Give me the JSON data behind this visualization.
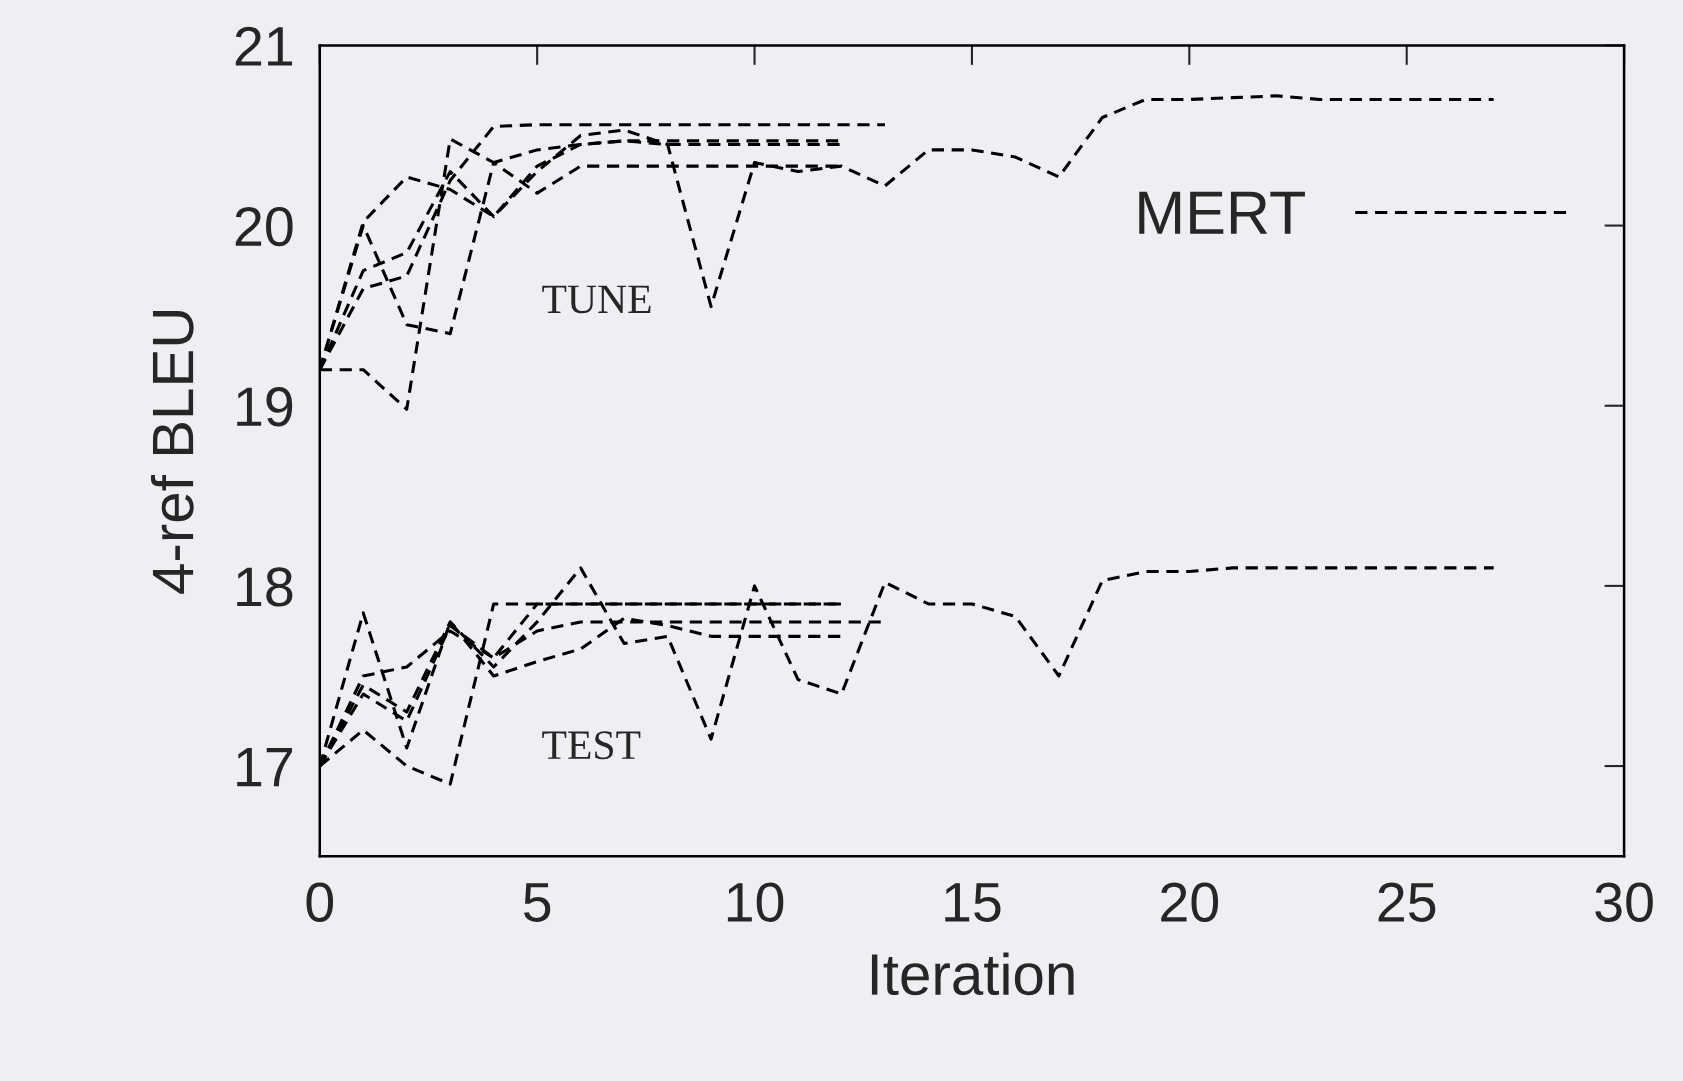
{
  "chart_data": {
    "type": "line",
    "xlabel": "Iteration",
    "ylabel": "4-ref BLEU",
    "xlim": [
      0,
      30
    ],
    "ylim": [
      16.5,
      21
    ],
    "xticks": [
      0,
      5,
      10,
      15,
      20,
      25,
      30
    ],
    "yticks": [
      17,
      18,
      19,
      20,
      21
    ],
    "legend": "top right",
    "line_style": "dashed",
    "marker": "none",
    "grid": false,
    "annotations": [
      "TUNE",
      "TEST"
    ],
    "series": [
      {
        "name": "MERT",
        "color": "#000000",
        "x": [
          0,
          1,
          2,
          3,
          4,
          5,
          6,
          7,
          8,
          9,
          10,
          11,
          12,
          13,
          14,
          15,
          16,
          17,
          18,
          19,
          20,
          21,
          22,
          23,
          24,
          25,
          26,
          27
        ],
        "values": [
          19.2,
          19.75,
          19.85,
          20.3,
          20.05,
          20.3,
          20.5,
          20.53,
          20.45,
          19.55,
          20.35,
          20.3,
          20.33,
          20.22,
          20.42,
          20.42,
          20.38,
          20.27,
          20.6,
          20.7,
          20.7,
          20.71,
          20.72,
          20.7,
          20.7,
          20.7,
          20.7,
          20.7
        ]
      },
      {
        "color": "#000000",
        "x": [
          0,
          1,
          2,
          3,
          4,
          5,
          6,
          7,
          8,
          9,
          10,
          11,
          12,
          13
        ],
        "values": [
          19.2,
          19.65,
          19.72,
          20.25,
          20.55,
          20.56,
          20.56,
          20.56,
          20.56,
          20.56,
          20.56,
          20.56,
          20.56,
          20.56
        ]
      },
      {
        "color": "#000000",
        "x": [
          0,
          1,
          2,
          3,
          4,
          5,
          6,
          7,
          8,
          9,
          10,
          11,
          12
        ],
        "values": [
          19.2,
          20.0,
          19.45,
          19.4,
          20.35,
          20.42,
          20.45,
          20.47,
          20.47,
          20.47,
          20.47,
          20.47,
          20.47
        ]
      },
      {
        "color": "#000000",
        "x": [
          0,
          1,
          2,
          3,
          4,
          5,
          6,
          7,
          8,
          9,
          10,
          11,
          12
        ],
        "values": [
          19.2,
          19.2,
          18.98,
          20.48,
          20.35,
          20.18,
          20.33,
          20.33,
          20.33,
          20.33,
          20.33,
          20.33,
          20.33
        ]
      },
      {
        "color": "#000000",
        "x": [
          0,
          1,
          2,
          3,
          4,
          5,
          6,
          7,
          8,
          9,
          10,
          11,
          12
        ],
        "values": [
          19.2,
          20.02,
          20.27,
          20.2,
          20.05,
          20.33,
          20.45,
          20.47,
          20.45,
          20.45,
          20.45,
          20.45,
          20.45
        ]
      },
      {
        "color": "#000000",
        "x": [
          0,
          1,
          2,
          3,
          4,
          5,
          6,
          7,
          8,
          9,
          10,
          11,
          12,
          13,
          14,
          15,
          16,
          17,
          18,
          19,
          20,
          21,
          22,
          23,
          24,
          25,
          26,
          27
        ],
        "values": [
          17.0,
          17.45,
          17.3,
          17.8,
          17.55,
          17.8,
          18.1,
          17.68,
          17.72,
          17.15,
          18.0,
          17.48,
          17.4,
          18.02,
          17.9,
          17.9,
          17.83,
          17.5,
          18.03,
          18.08,
          18.08,
          18.1,
          18.1,
          18.1,
          18.1,
          18.1,
          18.1,
          18.1
        ]
      },
      {
        "color": "#000000",
        "x": [
          0,
          1,
          2,
          3,
          4,
          5,
          6,
          7,
          8,
          9,
          10,
          11,
          12,
          13
        ],
        "values": [
          17.0,
          17.5,
          17.55,
          17.75,
          17.6,
          17.75,
          17.8,
          17.8,
          17.8,
          17.8,
          17.8,
          17.8,
          17.8,
          17.8
        ]
      },
      {
        "color": "#000000",
        "x": [
          0,
          1,
          2,
          3,
          4,
          5,
          6,
          7,
          8,
          9,
          10,
          11,
          12
        ],
        "values": [
          17.0,
          17.2,
          17.0,
          16.9,
          17.9,
          17.9,
          17.9,
          17.9,
          17.9,
          17.9,
          17.9,
          17.9,
          17.9
        ]
      },
      {
        "color": "#000000",
        "x": [
          0,
          1,
          2,
          3,
          4,
          5,
          6,
          7,
          8,
          9,
          10,
          11,
          12
        ],
        "values": [
          17.0,
          17.85,
          17.1,
          17.8,
          17.5,
          17.58,
          17.65,
          17.82,
          17.78,
          17.72,
          17.72,
          17.72,
          17.72
        ]
      },
      {
        "color": "#000000",
        "x": [
          0,
          1,
          2,
          3,
          4,
          5,
          6,
          7,
          8,
          9,
          10,
          11,
          12
        ],
        "values": [
          17.0,
          17.4,
          17.25,
          17.78,
          17.6,
          17.9,
          17.9,
          17.9,
          17.9,
          17.9,
          17.9,
          17.9,
          17.9
        ]
      }
    ]
  }
}
